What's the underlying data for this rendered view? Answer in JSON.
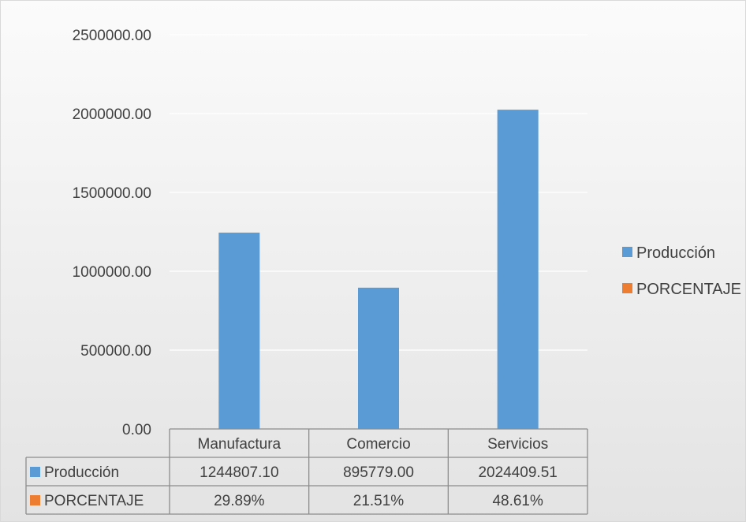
{
  "chart_data": {
    "type": "bar",
    "title": "",
    "xlabel": "",
    "ylabel": "",
    "categories": [
      "Manufactura",
      "Comercio",
      "Servicios"
    ],
    "series": [
      {
        "name": "Producción",
        "values": [
          1244807.1,
          895779.0,
          2024409.51
        ],
        "display": [
          "1244807.10",
          "895779.00",
          "2024409.51"
        ],
        "color": "#5b9bd5",
        "plotted": true
      },
      {
        "name": "PORCENTAJE",
        "values": [
          29.89,
          21.51,
          48.61
        ],
        "display": [
          "29.89%",
          "21.51%",
          "48.61%"
        ],
        "color": "#ed7d31",
        "plotted": false
      }
    ],
    "ylim": [
      0,
      2500000
    ],
    "yticks": [
      0,
      500000,
      1000000,
      1500000,
      2000000,
      2500000
    ],
    "ytick_labels": [
      "0.00",
      "500000.00",
      "1000000.00",
      "1500000.00",
      "2000000.00",
      "2500000.00"
    ],
    "grid": true,
    "legend": "right",
    "data_table": true,
    "background": "#ececec",
    "grid_color": "#ffffff"
  }
}
